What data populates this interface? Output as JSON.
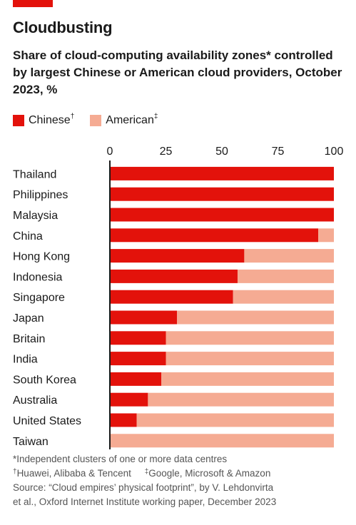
{
  "header": {
    "title": "Cloudbusting",
    "subtitle": "Share of cloud-computing availability zones* controlled by largest Chinese or American cloud providers, October 2023, %"
  },
  "legend": {
    "chinese_label": "Chinese",
    "chinese_mark": "†",
    "american_label": "American",
    "american_mark": "‡"
  },
  "colors": {
    "chinese": "#e3120b",
    "american": "#f5ab93",
    "accent_bar": "#e3120b",
    "axis": "#1a1a1a"
  },
  "chart_data": {
    "type": "bar",
    "orientation": "horizontal",
    "stacked": true,
    "xlim": [
      0,
      100
    ],
    "x_ticks": [
      "0",
      "25",
      "50",
      "75",
      "100"
    ],
    "legend_position": "top-left",
    "grid": false,
    "categories": [
      "Thailand",
      "Philippines",
      "Malaysia",
      "China",
      "Hong Kong",
      "Indonesia",
      "Singapore",
      "Japan",
      "Britain",
      "India",
      "South Korea",
      "Australia",
      "United States",
      "Taiwan"
    ],
    "series": [
      {
        "name": "Chinese",
        "values": [
          100,
          100,
          100,
          93,
          60,
          57,
          55,
          30,
          25,
          25,
          23,
          17,
          12,
          0
        ]
      },
      {
        "name": "American",
        "values": [
          0,
          0,
          0,
          7,
          40,
          43,
          45,
          70,
          75,
          75,
          77,
          83,
          88,
          100
        ]
      }
    ]
  },
  "footnotes": {
    "note1": "*Independent clusters of one or more data centres",
    "note2_mark": "†",
    "note2": "Huawei, Alibaba & Tencent",
    "note3_mark": "‡",
    "note3": "Google, Microsoft & Amazon",
    "source": "Source: “Cloud empires’ physical footprint”, by V. Lehdonvirta",
    "source2": "et al., Oxford Internet Institute working paper, December 2023"
  }
}
